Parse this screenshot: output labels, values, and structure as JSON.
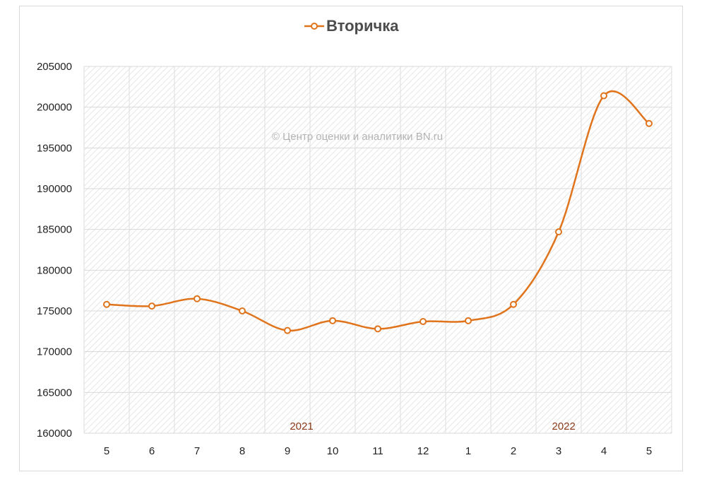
{
  "chart_data": {
    "type": "line",
    "title": "Вторичка",
    "watermark": "© Центр оценки и аналитики BN.ru",
    "categories": [
      "5",
      "6",
      "7",
      "8",
      "9",
      "10",
      "11",
      "12",
      "1",
      "2",
      "3",
      "4",
      "5"
    ],
    "year_labels": [
      {
        "label": "2021",
        "category_index": 4
      },
      {
        "label": "2022",
        "category_index": 9.8
      }
    ],
    "series": [
      {
        "name": "Вторичка",
        "color": "#e0741c",
        "values": [
          175800,
          175600,
          176500,
          175000,
          172600,
          173800,
          172800,
          173700,
          173800,
          175800,
          184700,
          201400,
          198000
        ]
      }
    ],
    "y_ticks": [
      "160000",
      "165000",
      "170000",
      "175000",
      "180000",
      "185000",
      "190000",
      "195000",
      "200000",
      "205000"
    ],
    "ylim": [
      160000,
      205000
    ],
    "grid": true,
    "legend": "top-center",
    "smooth": true
  }
}
